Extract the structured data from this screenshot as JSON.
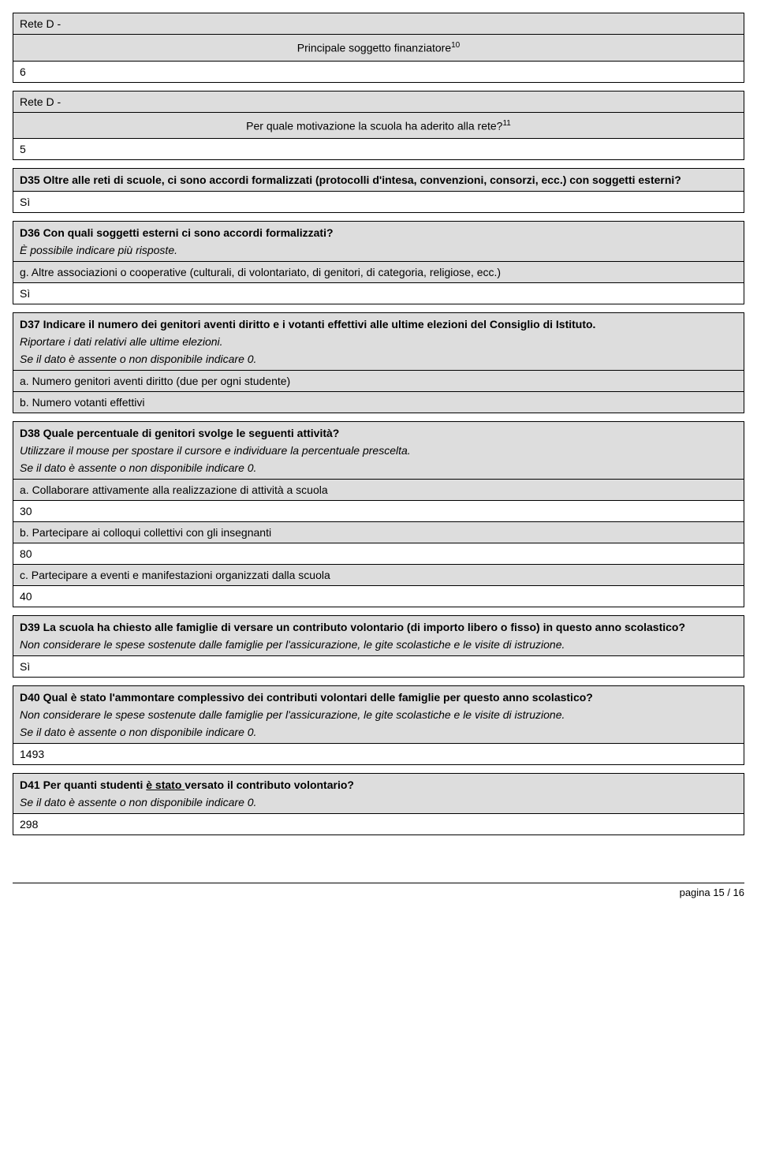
{
  "colors": {
    "shaded": "#dddddd",
    "border": "#000000",
    "bg": "#ffffff"
  },
  "font": {
    "family": "Arial",
    "size_pt": 11
  },
  "box1": {
    "header": "Rete D -",
    "caption": "Principale soggetto finanziatore",
    "caption_sup": "10",
    "value": "6"
  },
  "box2": {
    "header": "Rete D -",
    "caption": "Per quale motivazione la scuola ha aderito alla rete?",
    "caption_sup": "11",
    "value": "5"
  },
  "d35": {
    "question": "D35 Oltre alle reti di scuole, ci sono accordi formalizzati (protocolli d'intesa, convenzioni, consorzi, ecc.) con soggetti esterni?",
    "answer": "Sì"
  },
  "d36": {
    "question": "D36 Con quali soggetti esterni ci sono accordi formalizzati?",
    "hint": "È possibile indicare più risposte.",
    "option": "g. Altre associazioni o cooperative (culturali, di volontariato, di genitori, di categoria, religiose, ecc.)",
    "answer": "Sì"
  },
  "d37": {
    "question": "D37 Indicare il numero dei genitori aventi diritto e i votanti effettivi alle ultime elezioni del Consiglio di Istituto.",
    "hint1": "Riportare i dati relativi alle ultime elezioni.",
    "hint2": "Se il dato è assente o non disponibile indicare 0.",
    "a": "a. Numero genitori aventi diritto (due per ogni studente)",
    "b": "b. Numero votanti effettivi"
  },
  "d38": {
    "question": "D38 Quale percentuale di genitori svolge le seguenti attività?",
    "hint1": "Utilizzare il mouse per spostare il cursore e individuare la percentuale prescelta.",
    "hint2": "Se il dato è assente o non disponibile indicare 0.",
    "a_label": "a. Collaborare attivamente alla realizzazione di attività a scuola",
    "a_val": "30",
    "b_label": "b. Partecipare ai colloqui collettivi con gli insegnanti",
    "b_val": "80",
    "c_label": "c. Partecipare a eventi e manifestazioni organizzati dalla scuola",
    "c_val": "40"
  },
  "d39": {
    "question": "D39 La scuola ha chiesto alle famiglie di versare un contributo volontario (di importo libero o fisso) in questo anno scolastico?",
    "hint": "Non considerare le spese sostenute dalle famiglie per l'assicurazione, le gite scolastiche e le visite di istruzione.",
    "answer": "Sì"
  },
  "d40": {
    "question": "D40 Qual è stato l'ammontare complessivo dei contributi volontari delle famiglie per questo anno scolastico?",
    "hint1": "Non considerare le spese sostenute dalle famiglie per l'assicurazione, le gite scolastiche e le visite di istruzione.",
    "hint2": "Se il dato è assente o non disponibile indicare 0.",
    "answer": "1493"
  },
  "d41": {
    "q_prefix": "D41 Per quanti studenti ",
    "q_underlined": "è stato ",
    "q_suffix": "versato il contributo volontario?",
    "hint": "Se il dato è assente o non disponibile indicare 0.",
    "answer": "298"
  },
  "footer": "pagina 15 / 16"
}
